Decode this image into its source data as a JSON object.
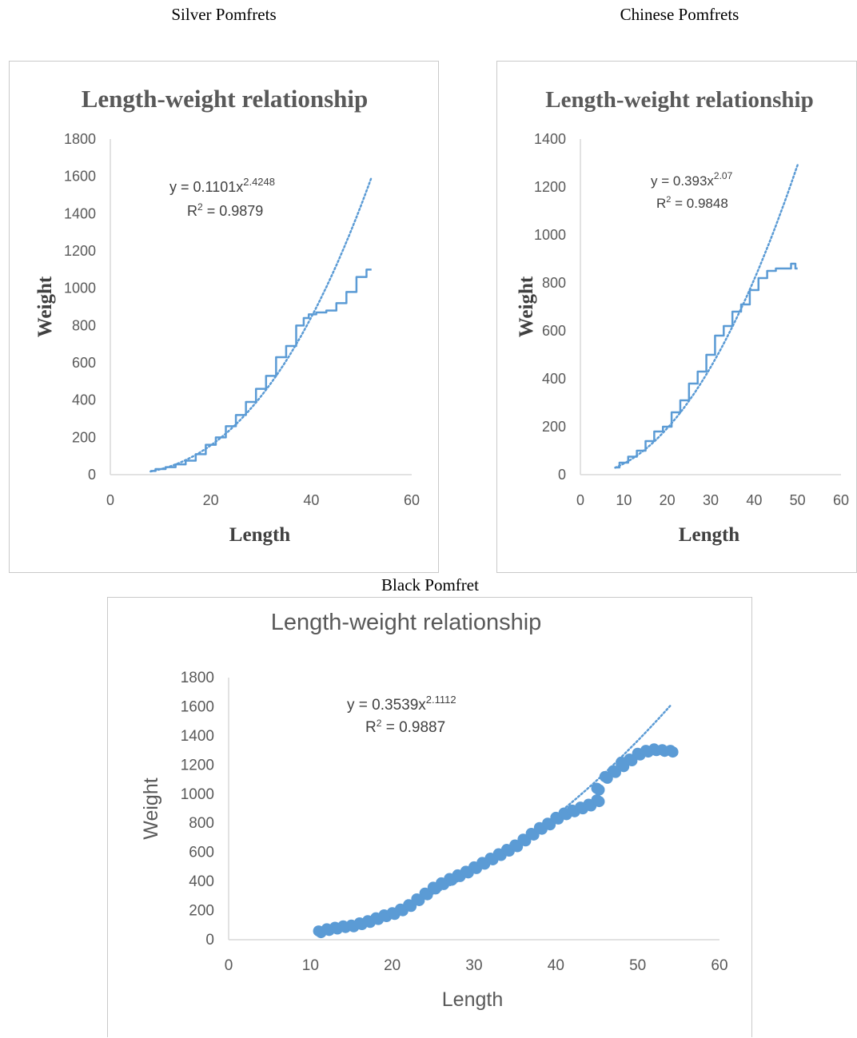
{
  "captions": {
    "silver": "Silver Pomfrets",
    "chinese": "Chinese Pomfrets",
    "black": "Black Pomfret"
  },
  "colors": {
    "series": "#5b9bd5",
    "axis": "#d9d9d9",
    "text": "#595959"
  },
  "chart_data": [
    {
      "type": "line",
      "title": "Length-weight relationship",
      "xlabel": "Length",
      "ylabel": "Weight",
      "xlim": [
        0,
        60
      ],
      "ylim": [
        0,
        1800
      ],
      "xticks": [
        0,
        20,
        40,
        60
      ],
      "yticks": [
        0,
        200,
        400,
        600,
        800,
        1000,
        1200,
        1400,
        1600,
        1800
      ],
      "trendline": {
        "type": "power",
        "a": 0.1101,
        "b": 2.4248,
        "x_range": [
          8,
          52
        ],
        "style": "dotted",
        "equation": "y = 0.1101x",
        "exponent": "2.4248",
        "r2_prefix": "R",
        "r2_value": " = 0.9879"
      },
      "series": [
        {
          "x": [
            8,
            10,
            12,
            14,
            16,
            18,
            20,
            22,
            24,
            26,
            28,
            30,
            32,
            34,
            36,
            38,
            39,
            40,
            42,
            44,
            46,
            48,
            50,
            52
          ],
          "y": [
            20,
            30,
            40,
            55,
            75,
            110,
            160,
            200,
            260,
            320,
            390,
            460,
            530,
            630,
            690,
            800,
            840,
            860,
            870,
            880,
            920,
            980,
            1060,
            1100
          ]
        }
      ],
      "grid": false,
      "legend": "none"
    },
    {
      "type": "line",
      "title": "Length-weight relationship",
      "xlabel": "Length",
      "ylabel": "Weight",
      "xlim": [
        0,
        60
      ],
      "ylim": [
        0,
        1400
      ],
      "xticks": [
        0,
        10,
        20,
        30,
        40,
        50,
        60
      ],
      "yticks": [
        0,
        200,
        400,
        600,
        800,
        1000,
        1200,
        1400
      ],
      "trendline": {
        "type": "power",
        "a": 0.393,
        "b": 2.07,
        "x_range": [
          8,
          50
        ],
        "style": "dotted",
        "equation": "y = 0.393x",
        "exponent": "2.07",
        "r2_prefix": "R",
        "r2_value": " = 0.9848"
      },
      "series": [
        {
          "x": [
            8,
            10,
            12,
            14,
            16,
            18,
            20,
            22,
            24,
            26,
            28,
            30,
            32,
            34,
            36,
            38,
            40,
            42,
            44,
            46,
            48,
            49,
            50
          ],
          "y": [
            30,
            50,
            75,
            100,
            140,
            180,
            200,
            260,
            310,
            380,
            430,
            500,
            580,
            620,
            680,
            710,
            770,
            820,
            850,
            860,
            860,
            880,
            860
          ]
        }
      ],
      "grid": false,
      "legend": "none"
    },
    {
      "type": "scatter",
      "title": "Length-weight relationship",
      "xlabel": "Length",
      "ylabel": "Weight",
      "xlim": [
        0,
        60
      ],
      "ylim": [
        0,
        1800
      ],
      "xticks": [
        0,
        10,
        20,
        30,
        40,
        50,
        60
      ],
      "yticks": [
        0,
        200,
        400,
        600,
        800,
        1000,
        1200,
        1400,
        1600,
        1800
      ],
      "trendline": {
        "type": "power",
        "a": 0.3539,
        "b": 2.1112,
        "x_range": [
          11,
          54
        ],
        "style": "dotted",
        "equation": "y = 0.3539x",
        "exponent": "2.1112",
        "r2_prefix": "R",
        "r2_value": " = 0.9887"
      },
      "series": [
        {
          "x": [
            11,
            12,
            13,
            14,
            15,
            16,
            17,
            18,
            19,
            20,
            21,
            22,
            23,
            24,
            25,
            26,
            27,
            28,
            29,
            30,
            31,
            32,
            33,
            34,
            35,
            36,
            37,
            38,
            39,
            40,
            41,
            42,
            43,
            44,
            45,
            45,
            46,
            47,
            48,
            48,
            49,
            50,
            51,
            52,
            53,
            54
          ],
          "y": [
            60,
            75,
            85,
            95,
            100,
            115,
            130,
            150,
            170,
            185,
            210,
            240,
            280,
            320,
            360,
            390,
            420,
            445,
            470,
            500,
            530,
            560,
            590,
            620,
            650,
            690,
            730,
            770,
            800,
            840,
            870,
            890,
            910,
            930,
            960,
            1040,
            1120,
            1160,
            1200,
            1220,
            1240,
            1280,
            1300,
            1310,
            1305,
            1300
          ]
        }
      ],
      "grid": false,
      "legend": "none"
    }
  ]
}
